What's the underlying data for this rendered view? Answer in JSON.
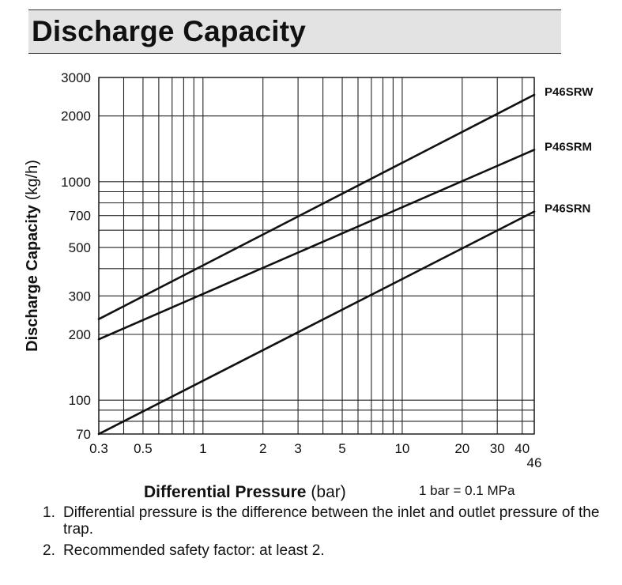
{
  "page": {
    "title": "Discharge Capacity"
  },
  "chart_data": {
    "type": "line",
    "title": "Discharge Capacity",
    "xlabel_bold": "Differential Pressure",
    "xlabel_unit": "(bar)",
    "ylabel_bold": "Discharge Capacity",
    "ylabel_unit": "(kg/h)",
    "conversion_note": "1 bar = 0.1 MPa",
    "x_scale": "log",
    "y_scale": "log",
    "xlim": [
      0.3,
      46
    ],
    "ylim": [
      70,
      3000
    ],
    "x_ticks": [
      {
        "value": 0.3,
        "label": "0.3"
      },
      {
        "value": 0.5,
        "label": "0.5"
      },
      {
        "value": 1,
        "label": "1"
      },
      {
        "value": 2,
        "label": "2"
      },
      {
        "value": 3,
        "label": "3"
      },
      {
        "value": 5,
        "label": "5"
      },
      {
        "value": 10,
        "label": "10"
      },
      {
        "value": 20,
        "label": "20"
      },
      {
        "value": 30,
        "label": "30"
      },
      {
        "value": 40,
        "label": "40"
      }
    ],
    "x_extra_label": {
      "value": 46,
      "label": "46"
    },
    "x_grid": [
      0.3,
      0.4,
      0.5,
      0.6,
      0.7,
      0.8,
      0.9,
      1,
      2,
      3,
      4,
      5,
      6,
      7,
      8,
      9,
      10,
      20,
      30,
      40,
      46
    ],
    "y_ticks": [
      {
        "value": 70,
        "label": "70"
      },
      {
        "value": 100,
        "label": "100"
      },
      {
        "value": 200,
        "label": "200"
      },
      {
        "value": 300,
        "label": "300"
      },
      {
        "value": 500,
        "label": "500"
      },
      {
        "value": 700,
        "label": "700"
      },
      {
        "value": 1000,
        "label": "1000"
      },
      {
        "value": 2000,
        "label": "2000"
      },
      {
        "value": 3000,
        "label": "3000"
      }
    ],
    "y_grid": [
      70,
      80,
      90,
      100,
      200,
      300,
      400,
      500,
      600,
      700,
      800,
      900,
      1000,
      2000,
      3000
    ],
    "series": [
      {
        "name": "P46SRW",
        "points": [
          [
            0.3,
            235
          ],
          [
            46,
            2500
          ]
        ]
      },
      {
        "name": "P46SRM",
        "points": [
          [
            0.3,
            190
          ],
          [
            46,
            1400
          ]
        ]
      },
      {
        "name": "P46SRN",
        "points": [
          [
            0.3,
            70
          ],
          [
            46,
            730
          ]
        ]
      }
    ]
  },
  "notes": [
    {
      "num": "1.",
      "text": "Differential pressure is the difference between the inlet and outlet pressure of the trap."
    },
    {
      "num": "2.",
      "text": "Recommended safety factor: at least 2."
    }
  ]
}
